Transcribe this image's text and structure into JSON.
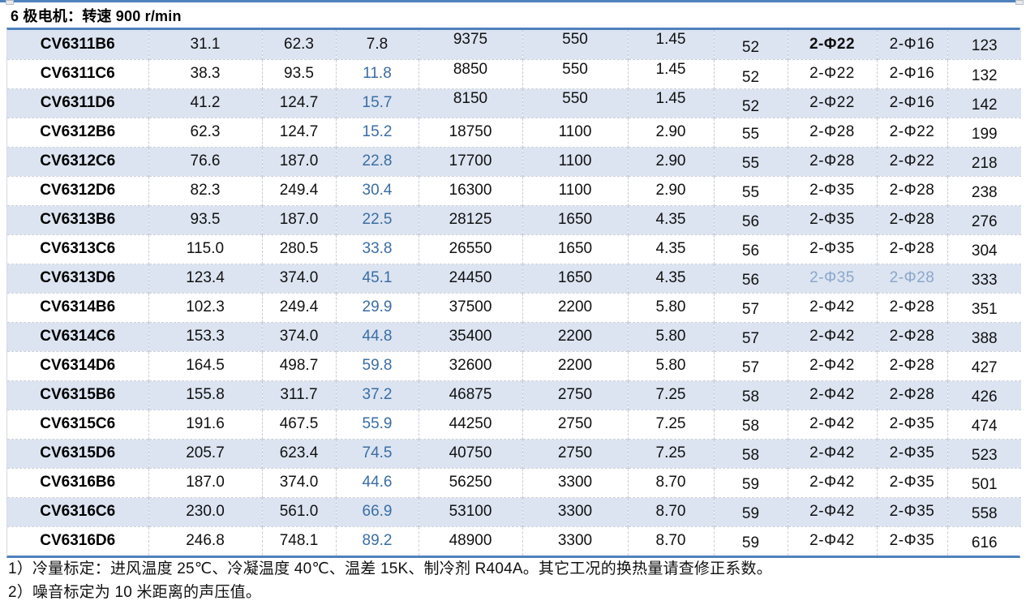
{
  "colors": {
    "accent_blue_rule": "#4f81bd",
    "band_fill": "#dce4f1",
    "value_blue_text": "#3a6da4",
    "muted_blue_text": "#8aa6cb"
  },
  "section": {
    "title": "6 极电机：转速 900 r/min"
  },
  "table": {
    "rows": [
      {
        "model": "CV6311B6",
        "values": [
          "31.1",
          "62.3",
          "7.8",
          "9375",
          "550",
          "1.45",
          "52",
          "2-Φ22",
          "2-Φ16",
          "123"
        ]
      },
      {
        "model": "CV6311C6",
        "values": [
          "38.3",
          "93.5",
          "11.8",
          "8850",
          "550",
          "1.45",
          "52",
          "2-Φ22",
          "2-Φ16",
          "132"
        ]
      },
      {
        "model": "CV6311D6",
        "values": [
          "41.2",
          "124.7",
          "15.7",
          "8150",
          "550",
          "1.45",
          "52",
          "2-Φ22",
          "2-Φ16",
          "142"
        ]
      },
      {
        "model": "CV6312B6",
        "values": [
          "62.3",
          "124.7",
          "15.2",
          "18750",
          "1100",
          "2.90",
          "55",
          "2-Φ28",
          "2-Φ22",
          "199"
        ]
      },
      {
        "model": "CV6312C6",
        "values": [
          "76.6",
          "187.0",
          "22.8",
          "17700",
          "1100",
          "2.90",
          "55",
          "2-Φ28",
          "2-Φ22",
          "218"
        ]
      },
      {
        "model": "CV6312D6",
        "values": [
          "82.3",
          "249.4",
          "30.4",
          "16300",
          "1100",
          "2.90",
          "55",
          "2-Φ35",
          "2-Φ28",
          "238"
        ]
      },
      {
        "model": "CV6313B6",
        "values": [
          "93.5",
          "187.0",
          "22.5",
          "28125",
          "1650",
          "4.35",
          "56",
          "2-Φ35",
          "2-Φ28",
          "276"
        ]
      },
      {
        "model": "CV6313C6",
        "values": [
          "115.0",
          "280.5",
          "33.8",
          "26550",
          "1650",
          "4.35",
          "56",
          "2-Φ35",
          "2-Φ28",
          "304"
        ]
      },
      {
        "model": "CV6313D6",
        "values": [
          "123.4",
          "374.0",
          "45.1",
          "24450",
          "1650",
          "4.35",
          "56",
          "2-Φ35",
          "2-Φ28",
          "333"
        ]
      },
      {
        "model": "CV6314B6",
        "values": [
          "102.3",
          "249.4",
          "29.9",
          "37500",
          "2200",
          "5.80",
          "57",
          "2-Φ42",
          "2-Φ28",
          "351"
        ]
      },
      {
        "model": "CV6314C6",
        "values": [
          "153.3",
          "374.0",
          "44.8",
          "35400",
          "2200",
          "5.80",
          "57",
          "2-Φ42",
          "2-Φ28",
          "388"
        ]
      },
      {
        "model": "CV6314D6",
        "values": [
          "164.5",
          "498.7",
          "59.8",
          "32600",
          "2200",
          "5.80",
          "57",
          "2-Φ42",
          "2-Φ28",
          "427"
        ]
      },
      {
        "model": "CV6315B6",
        "values": [
          "155.8",
          "311.7",
          "37.2",
          "46875",
          "2750",
          "7.25",
          "58",
          "2-Φ42",
          "2-Φ28",
          "426"
        ]
      },
      {
        "model": "CV6315C6",
        "values": [
          "191.6",
          "467.5",
          "55.9",
          "44250",
          "2750",
          "7.25",
          "58",
          "2-Φ42",
          "2-Φ35",
          "474"
        ]
      },
      {
        "model": "CV6315D6",
        "values": [
          "205.7",
          "623.4",
          "74.5",
          "40750",
          "2750",
          "7.25",
          "58",
          "2-Φ42",
          "2-Φ35",
          "523"
        ]
      },
      {
        "model": "CV6316B6",
        "values": [
          "187.0",
          "374.0",
          "44.6",
          "56250",
          "3300",
          "8.70",
          "59",
          "2-Φ42",
          "2-Φ35",
          "501"
        ]
      },
      {
        "model": "CV6316C6",
        "values": [
          "230.0",
          "561.0",
          "66.9",
          "53100",
          "3300",
          "8.70",
          "59",
          "2-Φ42",
          "2-Φ35",
          "558"
        ]
      },
      {
        "model": "CV6316D6",
        "values": [
          "246.8",
          "748.1",
          "89.2",
          "48900",
          "3300",
          "8.70",
          "59",
          "2-Φ42",
          "2-Φ35",
          "616"
        ]
      }
    ]
  },
  "notes": {
    "line1": "1）冷量标定：进风温度 25℃、冷凝温度 40℃、温差 15K、制冷剂 R404A。其它工况的换热量请查修正系数。",
    "line2": "2）噪音标定为 10 米距离的声压值。"
  }
}
